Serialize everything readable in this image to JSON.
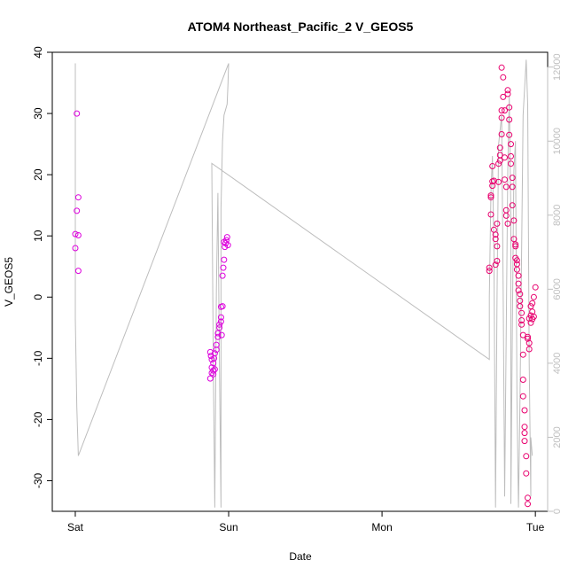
{
  "chart_data": {
    "type": "scatter",
    "title": "ATOM4 Northeast_Pacific_2 V_GEOS5",
    "xlabel": "Date",
    "ylabel": "V_GEOS5",
    "x_ticks": [
      {
        "value": 0,
        "label": "Sat"
      },
      {
        "value": 1,
        "label": "Sun"
      },
      {
        "value": 2,
        "label": "Mon"
      },
      {
        "value": 3,
        "label": "Tue"
      }
    ],
    "xlim": [
      -0.15,
      3.08
    ],
    "ylim": [
      -35,
      40
    ],
    "y_ticks": [
      -30,
      -20,
      -10,
      0,
      10,
      20,
      30,
      40
    ],
    "y2lim": [
      0,
      12400
    ],
    "y2_ticks": [
      0,
      2000,
      4000,
      6000,
      8000,
      10000,
      12000
    ],
    "colors": {
      "points_sat_sun": "#dd00dd",
      "points_tue": "#e8006e",
      "altitude_line": "#bdbdbd",
      "right_axis": "#bfbfbf"
    },
    "series": [
      {
        "type": "scatter",
        "axis": "left",
        "points": [
          [
            0.01,
            30.0
          ],
          [
            0.02,
            16.3
          ],
          [
            0.01,
            14.1
          ],
          [
            0.0,
            10.3
          ],
          [
            0.02,
            10.1
          ],
          [
            0.0,
            8.0
          ],
          [
            0.02,
            4.3
          ],
          [
            0.88,
            -9.0
          ],
          [
            0.885,
            -9.6
          ],
          [
            0.89,
            -10.2
          ],
          [
            0.9,
            -10.8
          ],
          [
            0.89,
            -11.5
          ],
          [
            0.9,
            -12.0
          ],
          [
            0.91,
            -11.8
          ],
          [
            0.89,
            -12.4
          ],
          [
            0.88,
            -13.3
          ],
          [
            0.9,
            -12.6
          ],
          [
            0.905,
            -10.0
          ],
          [
            0.91,
            -9.2
          ],
          [
            0.92,
            -8.6
          ],
          [
            0.92,
            -7.8
          ],
          [
            0.93,
            -6.5
          ],
          [
            0.93,
            -5.9
          ],
          [
            0.94,
            -5.0
          ],
          [
            0.94,
            -4.5
          ],
          [
            0.95,
            -4.0
          ],
          [
            0.95,
            -3.3
          ],
          [
            0.955,
            -6.2
          ],
          [
            0.96,
            -1.5
          ],
          [
            0.95,
            -1.6
          ],
          [
            0.96,
            3.5
          ],
          [
            0.965,
            4.8
          ],
          [
            0.97,
            6.1
          ],
          [
            0.975,
            8.2
          ],
          [
            0.98,
            8.8
          ],
          [
            0.985,
            9.3
          ],
          [
            0.99,
            9.8
          ],
          [
            0.995,
            8.5
          ],
          [
            0.97,
            9.0
          ],
          [
            2.7,
            4.3
          ],
          [
            2.7,
            4.8
          ],
          [
            2.71,
            13.5
          ],
          [
            2.71,
            16.3
          ],
          [
            2.71,
            16.6
          ],
          [
            2.72,
            18.2
          ],
          [
            2.72,
            18.9
          ],
          [
            2.72,
            21.4
          ],
          [
            2.73,
            19.0
          ],
          [
            2.73,
            11.0
          ],
          [
            2.74,
            10.2
          ],
          [
            2.74,
            9.5
          ],
          [
            2.74,
            5.3
          ],
          [
            2.75,
            5.9
          ],
          [
            2.75,
            8.3
          ],
          [
            2.75,
            12.0
          ],
          [
            2.76,
            18.8
          ],
          [
            2.76,
            21.8
          ],
          [
            2.77,
            22.3
          ],
          [
            2.77,
            23.2
          ],
          [
            2.77,
            24.4
          ],
          [
            2.78,
            26.6
          ],
          [
            2.78,
            29.3
          ],
          [
            2.78,
            30.5
          ],
          [
            2.79,
            32.7
          ],
          [
            2.79,
            35.9
          ],
          [
            2.78,
            37.5
          ],
          [
            2.8,
            30.5
          ],
          [
            2.8,
            22.8
          ],
          [
            2.8,
            19.2
          ],
          [
            2.81,
            18.0
          ],
          [
            2.81,
            14.2
          ],
          [
            2.81,
            13.3
          ],
          [
            2.82,
            12.0
          ],
          [
            2.82,
            33.8
          ],
          [
            2.82,
            33.2
          ],
          [
            2.83,
            31.0
          ],
          [
            2.83,
            29.0
          ],
          [
            2.83,
            26.5
          ],
          [
            2.84,
            25.0
          ],
          [
            2.84,
            23.0
          ],
          [
            2.84,
            21.8
          ],
          [
            2.85,
            19.5
          ],
          [
            2.85,
            18.0
          ],
          [
            2.85,
            15.0
          ],
          [
            2.86,
            12.5
          ],
          [
            2.86,
            9.5
          ],
          [
            2.87,
            8.6
          ],
          [
            2.87,
            8.3
          ],
          [
            2.87,
            6.4
          ],
          [
            2.88,
            6.0
          ],
          [
            2.88,
            5.4
          ],
          [
            2.88,
            4.5
          ],
          [
            2.89,
            3.5
          ],
          [
            2.89,
            2.2
          ],
          [
            2.89,
            1.1
          ],
          [
            2.9,
            0.5
          ],
          [
            2.9,
            -0.6
          ],
          [
            2.9,
            -1.5
          ],
          [
            2.91,
            -2.6
          ],
          [
            2.91,
            -3.8
          ],
          [
            2.91,
            -4.5
          ],
          [
            2.92,
            -6.2
          ],
          [
            2.92,
            -9.4
          ],
          [
            2.92,
            -13.5
          ],
          [
            2.92,
            -16.2
          ],
          [
            2.93,
            -18.5
          ],
          [
            2.93,
            -21.2
          ],
          [
            2.93,
            -22.2
          ],
          [
            2.93,
            -23.5
          ],
          [
            2.94,
            -26.0
          ],
          [
            2.94,
            -28.8
          ],
          [
            2.95,
            -32.8
          ],
          [
            2.95,
            -33.8
          ],
          [
            2.95,
            -6.8
          ],
          [
            2.96,
            -7.5
          ],
          [
            2.96,
            -3.5
          ],
          [
            2.97,
            -3.0
          ],
          [
            2.97,
            -4.2
          ],
          [
            2.97,
            -1.5
          ],
          [
            2.98,
            -2.4
          ],
          [
            2.98,
            -3.6
          ],
          [
            2.98,
            -1.0
          ],
          [
            2.99,
            -3.2
          ],
          [
            2.99,
            0.0
          ],
          [
            3.0,
            1.6
          ],
          [
            2.96,
            -8.5
          ],
          [
            2.95,
            -6.5
          ]
        ]
      },
      {
        "type": "line",
        "axis": "right",
        "name": "",
        "points": [
          [
            0.0,
            12100
          ],
          [
            0.0,
            9800
          ],
          [
            0.0,
            7500
          ],
          [
            0.0,
            5200
          ],
          [
            0.01,
            2800
          ],
          [
            0.02,
            1500
          ],
          [
            1.0,
            12100
          ],
          [
            0.995,
            11500
          ],
          [
            0.99,
            11000
          ],
          [
            0.97,
            10700
          ],
          [
            0.96,
            10000
          ],
          [
            0.95,
            8200
          ],
          [
            0.95,
            100
          ],
          [
            0.94,
            4000
          ],
          [
            0.93,
            8600
          ],
          [
            0.92,
            6000
          ],
          [
            0.91,
            100
          ],
          [
            0.9,
            4000
          ],
          [
            0.89,
            9400
          ],
          [
            2.7,
            4100
          ],
          [
            2.7,
            5800
          ],
          [
            2.71,
            8600
          ],
          [
            2.72,
            9600
          ],
          [
            2.73,
            7000
          ],
          [
            2.74,
            100
          ],
          [
            2.75,
            5800
          ],
          [
            2.76,
            9900
          ],
          [
            2.78,
            10700
          ],
          [
            2.79,
            6000
          ],
          [
            2.8,
            400
          ],
          [
            2.82,
            9200
          ],
          [
            2.83,
            11200
          ],
          [
            2.84,
            8000
          ],
          [
            2.84,
            200
          ],
          [
            2.85,
            5000
          ],
          [
            2.86,
            9200
          ],
          [
            2.87,
            10000
          ],
          [
            2.88,
            3000
          ],
          [
            2.89,
            100
          ],
          [
            2.9,
            3000
          ],
          [
            2.92,
            10700
          ],
          [
            2.94,
            12200
          ],
          [
            2.95,
            11000
          ],
          [
            2.96,
            4000
          ],
          [
            2.97,
            400
          ],
          [
            2.97,
            2000
          ],
          [
            2.98,
            1500
          ]
        ]
      }
    ]
  }
}
